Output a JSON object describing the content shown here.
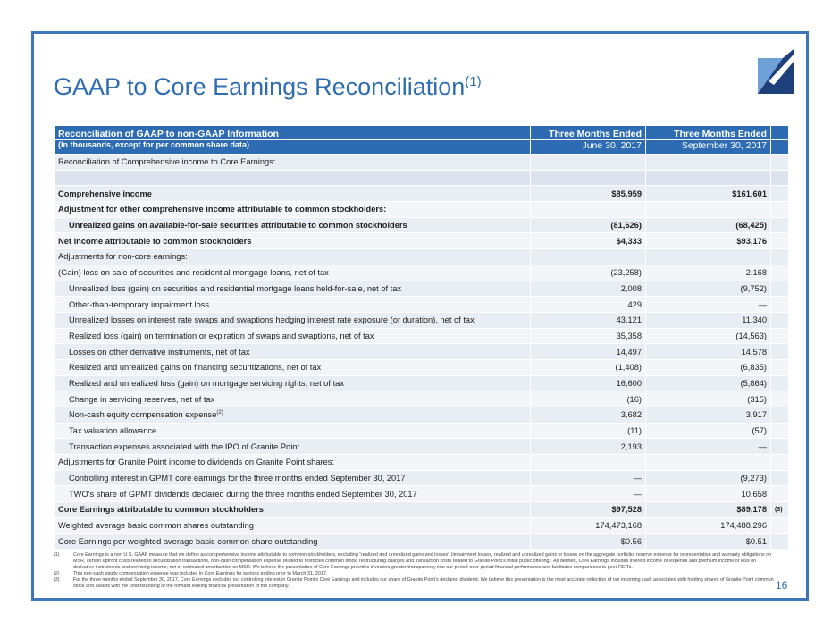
{
  "title": "GAAP to Core Earnings Reconciliation",
  "title_sup": "(1)",
  "table": {
    "header": {
      "title": "Reconciliation of GAAP to non-GAAP Information",
      "subtitle": "(In thousands, except for per common share data)",
      "columns": [
        {
          "line1": "Three Months Ended",
          "line2": "June 30, 2017"
        },
        {
          "line1": "Three Months Ended",
          "line2": "September 30, 2017"
        }
      ]
    },
    "rows": [
      {
        "label": "Reconciliation of Comprehensive income to Core Earnings:"
      },
      {
        "label": "Comprehensive income",
        "values": [
          "$85,959",
          "$161,601"
        ]
      },
      {
        "label": "Adjustment for other comprehensive income attributable to common stockholders:"
      },
      {
        "label": "Unrealized gains on available-for-sale securities attributable to common stockholders",
        "values": [
          "(81,626)",
          "(68,425)"
        ]
      },
      {
        "label": "Net income attributable to common stockholders",
        "values": [
          "$4,333",
          "$93,176"
        ]
      },
      {
        "label": "Adjustments for non-core earnings:"
      },
      {
        "label": "(Gain) loss on sale of securities and residential mortgage loans, net of tax",
        "values": [
          "(23,258)",
          "2,168"
        ]
      },
      {
        "label": "Unrealized loss (gain) on securities and residential mortgage loans held-for-sale, net of tax",
        "values": [
          "2,008",
          "(9,752)"
        ]
      },
      {
        "label": "Other-than-temporary impairment loss",
        "values": [
          "429",
          "—"
        ]
      },
      {
        "label": "Unrealized losses on interest rate swaps and swaptions hedging interest rate exposure (or duration), net of tax",
        "values": [
          "43,121",
          "11,340"
        ]
      },
      {
        "label": "Realized loss (gain) on termination or expiration of swaps and swaptions, net of tax",
        "values": [
          "35,358",
          "(14,563)"
        ]
      },
      {
        "label": "Losses on other derivative instruments, net of tax",
        "values": [
          "14,497",
          "14,578"
        ]
      },
      {
        "label": "Realized and unrealized gains on financing securitizations, net of tax",
        "values": [
          "(1,408)",
          "(6,835)"
        ]
      },
      {
        "label": "Realized and unrealized loss (gain) on mortgage servicing rights, net of tax",
        "values": [
          "16,600",
          "(5,864)"
        ]
      },
      {
        "label": "Change in servicing reserves, net of tax",
        "values": [
          "(16)",
          "(315)"
        ]
      },
      {
        "label": "Non-cash equity compensation expense",
        "label_sup": "(2)",
        "values": [
          "3,682",
          "3,917"
        ]
      },
      {
        "label": "Tax valuation allowance",
        "values": [
          "(11)",
          "(57)"
        ]
      },
      {
        "label": "Transaction expenses associated with the IPO of Granite Point",
        "values": [
          "2,193",
          "—"
        ]
      },
      {
        "label": "Adjustments for Granite Point income to dividends on Granite Point shares:"
      },
      {
        "label": "Controlling interest in GPMT core earnings for the three months ended September 30, 2017",
        "values": [
          "—",
          "(9,273)"
        ]
      },
      {
        "label": "TWO's share of GPMT dividends declared during the three months ended September 30, 2017",
        "values": [
          "—",
          "10,658"
        ]
      },
      {
        "label": "Core Earnings attributable to common stockholders",
        "values": [
          "$97,528",
          "$89,178"
        ],
        "note": "(3)"
      },
      {
        "label": "Weighted average basic common shares outstanding",
        "values": [
          "174,473,168",
          "174,488,296"
        ]
      },
      {
        "label": "Core Earnings per weighted average basic common share outstanding",
        "values": [
          "$0.56",
          "$0.51"
        ]
      }
    ]
  },
  "footnotes": [
    {
      "marker": "(1)",
      "text": "Core Earnings is a non U.S. GAAP measure that we define as comprehensive income attributable to common stockholders, excluding “realized and unrealized gains and losses” (impairment losses, realized and unrealized gains or losses on the aggregate portfolio, reserve expense for representation and warranty obligations on MSR, certain upfront costs related to securitization transactions, non-cash compensation expense related to restricted common stock, restructuring charges and transaction costs related to Granite Point’s initial public offering). As defined, Core Earnings includes interest income or expense and premium income or loss on derivative instruments and servicing income, net of estimated amortization on MSR. We believe the presentation of Core Earnings provides investors greater transparency into our period-over-period financial performance and facilitates comparisons to peer REITs."
    },
    {
      "marker": "(2)",
      "text": "This non-cash equity compensation expense was included in Core Earnings for periods ending prior to March 31, 2017."
    },
    {
      "marker": "(3)",
      "text": "For the three months ended September 30, 2017, Core Earnings excludes our controlling interest in Granite Point’s Core Earnings and includes our share of Granite Point’s declared dividend.  We believe this presentation is the most accurate reflection of our incoming cash associated with holding shares of Granite Point common stock and assists with the understanding of the forward looking financial presentation of the company."
    }
  ],
  "page_number": "16"
}
